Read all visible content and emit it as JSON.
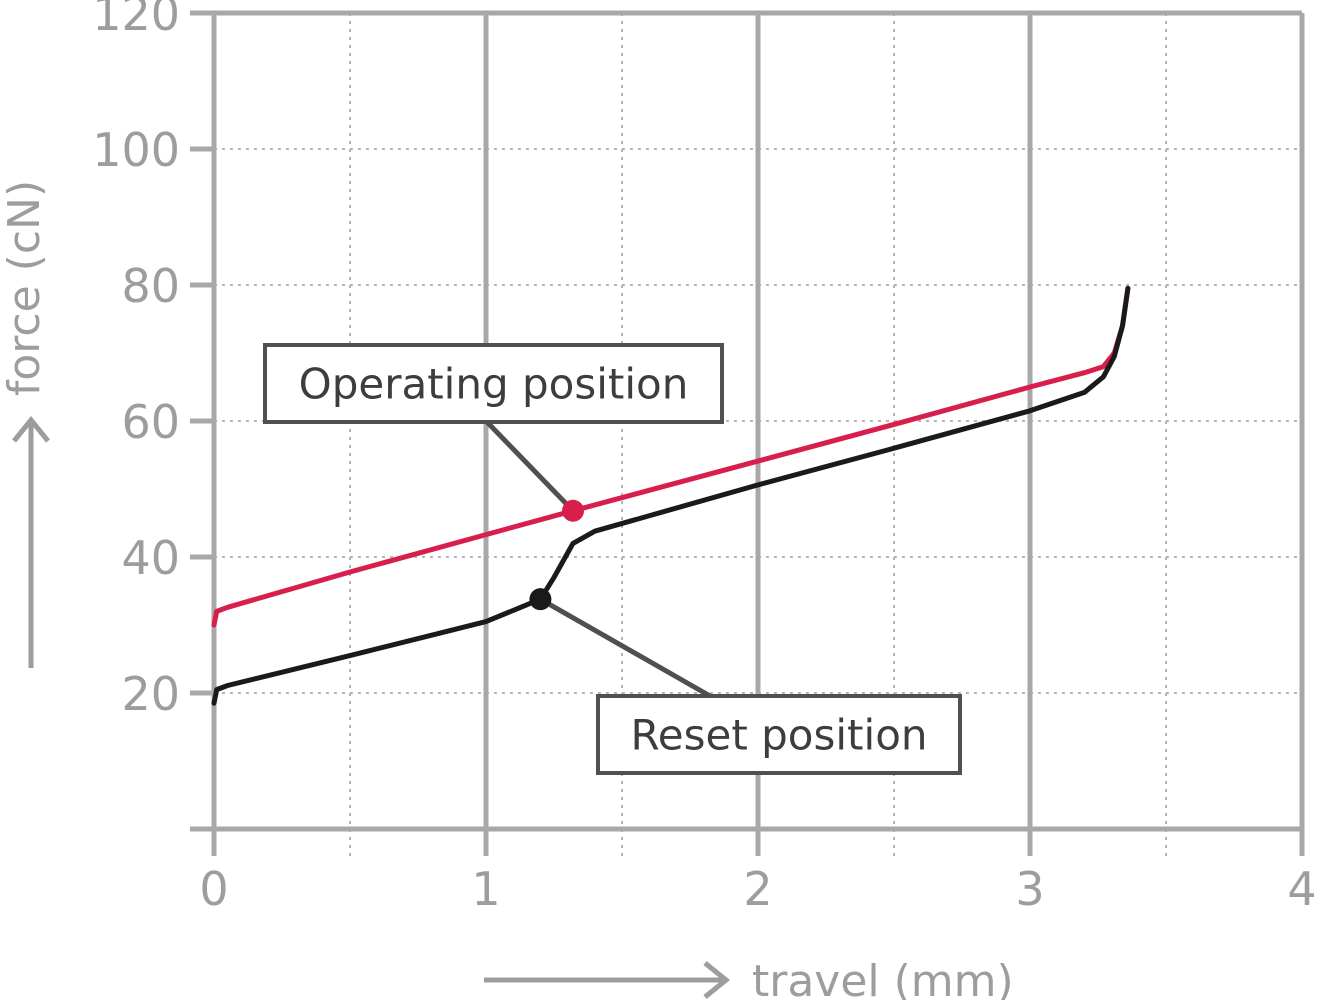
{
  "chart_data": {
    "type": "line",
    "xlabel": "travel (mm)",
    "ylabel": "force (cN)",
    "xlim": [
      0,
      4
    ],
    "ylim": [
      0,
      120
    ],
    "x_ticks": [
      0,
      1,
      2,
      3,
      4
    ],
    "x_tick_labels": [
      "0",
      "1",
      "2",
      "3",
      "4"
    ],
    "y_ticks": [
      20,
      40,
      60,
      80,
      100,
      120
    ],
    "y_tick_labels": [
      "20",
      "40",
      "60",
      "80",
      "100",
      "120"
    ],
    "grid": true,
    "colors": {
      "operating": "#d81e4b",
      "reset": "#1a1a1a",
      "grid_major": "#a8a8aa",
      "grid_minor": "#b5b5b7",
      "text": "#9d9d9f",
      "callout": "#505052"
    },
    "series": [
      {
        "key": "operating",
        "x": [
          0,
          0.01,
          0.05,
          0.5,
          1.0,
          1.32,
          2.0,
          2.5,
          3.0,
          3.2,
          3.27,
          3.31,
          3.34,
          3.36
        ],
        "y": [
          30,
          32,
          32.6,
          37.8,
          43.3,
          46.8,
          54.1,
          59.5,
          65.0,
          67.1,
          68.0,
          70.0,
          74.0,
          79.5
        ]
      },
      {
        "key": "reset",
        "x": [
          0,
          0.01,
          0.05,
          0.5,
          1.0,
          1.2,
          1.25,
          1.32,
          1.4,
          2.0,
          2.5,
          3.0,
          3.2,
          3.27,
          3.31,
          3.34,
          3.36
        ],
        "y": [
          18.5,
          20.5,
          21.1,
          25.5,
          30.5,
          33.8,
          37.0,
          42.0,
          43.8,
          50.6,
          56.0,
          61.5,
          64.2,
          66.5,
          69.5,
          74.0,
          79.5
        ]
      }
    ],
    "annotations": [
      {
        "text": "Operating position",
        "series": "operating",
        "x": 1.32,
        "y": 46.8
      },
      {
        "text": "Reset position",
        "series": "reset",
        "x": 1.2,
        "y": 33.8
      }
    ]
  }
}
